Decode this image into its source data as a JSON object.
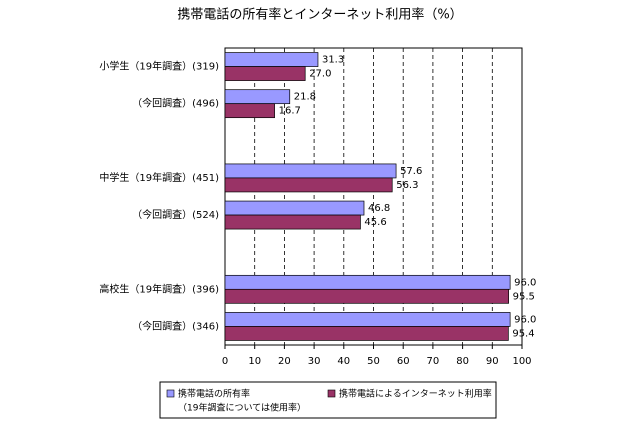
{
  "chart_data": {
    "type": "hbar",
    "title": "携帯電話の所有率とインターネット利用率（%）",
    "categories": [
      "小学生（19年調査）(319)",
      "（今回調査）(496)",
      null,
      "中学生（19年調査）(451)",
      "（今回調査）(524)",
      null,
      "高校生（19年調査）(396)",
      "（今回調査）(346)"
    ],
    "series": [
      {
        "name": "携帯電話の所有率",
        "legend_note": "（19年調査については使用率）",
        "color": "#9999ff",
        "values": [
          31.3,
          21.8,
          null,
          57.6,
          46.8,
          null,
          96.0,
          96.0
        ],
        "value_labels": [
          "31.3",
          "21.8",
          null,
          "57.6",
          "46.8",
          null,
          "96.0",
          "96.0"
        ]
      },
      {
        "name": "携帯電話によるインターネット利用率",
        "color": "#993366",
        "values": [
          27.0,
          16.7,
          null,
          56.3,
          45.6,
          null,
          95.5,
          95.4
        ],
        "value_labels": [
          "27.0",
          "16.7",
          null,
          "56.3",
          "45.6",
          null,
          "95.5",
          "95.4"
        ]
      }
    ],
    "xlim": [
      0,
      100
    ],
    "xticks": [
      0,
      10,
      20,
      30,
      40,
      50,
      60,
      70,
      80,
      90,
      100
    ],
    "grid": true
  }
}
